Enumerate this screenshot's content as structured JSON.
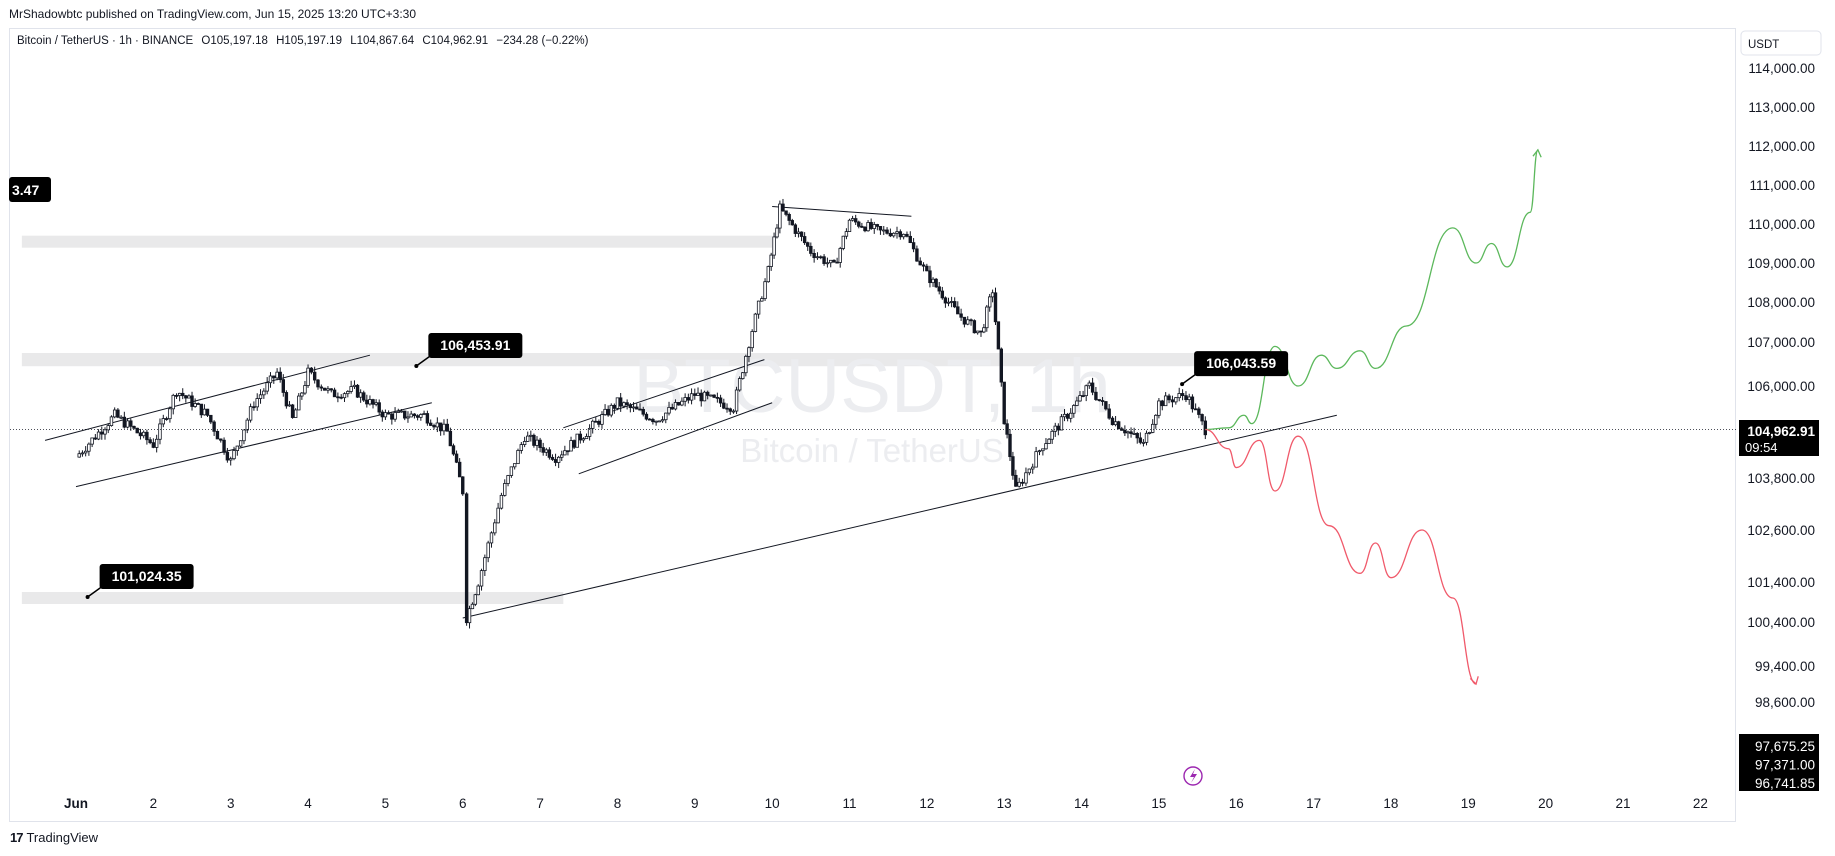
{
  "header": {
    "published": "MrShadowbtc published on TradingView.com, Jun 15, 2025 13:20 UTC+3:30"
  },
  "symbol_line": {
    "name": "Bitcoin / TetherUS · 1h · BINANCE",
    "open": "O105,197.18",
    "high": "H105,197.19",
    "low": "L104,867.64",
    "close": "C104,962.91",
    "change": "−234.28 (−0.22%)"
  },
  "watermark": {
    "ticker": "BTCUSDT, 1h",
    "name": "Bitcoin / TetherUS"
  },
  "footer": {
    "brand": "TradingView",
    "logo_mark": "17"
  },
  "colors": {
    "up_path": "#5cb85c",
    "down_path": "#f05a6b",
    "candles": "#131722",
    "zones": "#e9e9ea"
  },
  "chart_data": {
    "type": "candlestick",
    "currency": "USDT",
    "y_ticks": [
      "114,000.00",
      "113,000.00",
      "112,000.00",
      "111,000.00",
      "110,000.00",
      "109,000.00",
      "108,000.00",
      "107,000.00",
      "106,000.00",
      "103,800.00",
      "102,600.00",
      "101,400.00",
      "100,400.00",
      "99,400.00",
      "98,600.00"
    ],
    "y_tick_values": [
      114000,
      113000,
      112000,
      111000,
      110000,
      109000,
      108000,
      107000,
      106000,
      103800,
      102600,
      101400,
      100400,
      99400,
      98600
    ],
    "x_ticks": [
      "Jun",
      "2",
      "3",
      "4",
      "5",
      "6",
      "7",
      "8",
      "9",
      "10",
      "11",
      "12",
      "13",
      "14",
      "15",
      "16",
      "17",
      "18",
      "19",
      "20",
      "21",
      "22"
    ],
    "x_tick_days": [
      1,
      2,
      3,
      4,
      5,
      6,
      7,
      8,
      9,
      10,
      11,
      12,
      13,
      14,
      15,
      16,
      17,
      18,
      19,
      20,
      21,
      22
    ],
    "last_price": "104,962.91",
    "countdown": "09:54",
    "bottom_prices": [
      "97,675.25",
      "97,371.00",
      "96,741.85"
    ],
    "left_edge_label": "3.47",
    "callouts": [
      {
        "text": "106,453.91",
        "day": 5.4,
        "price": 106453.91
      },
      {
        "text": "106,043.59",
        "day": 15.3,
        "price": 106043.59
      },
      {
        "text": "101,024.35",
        "day": 1.15,
        "price": 101024.35
      }
    ],
    "closes": [
      {
        "day": 1.0,
        "price": 104300
      },
      {
        "day": 1.5,
        "price": 105300
      },
      {
        "day": 2.0,
        "price": 104600
      },
      {
        "day": 2.3,
        "price": 105900
      },
      {
        "day": 2.7,
        "price": 105300
      },
      {
        "day": 3.0,
        "price": 104200
      },
      {
        "day": 3.3,
        "price": 105600
      },
      {
        "day": 3.6,
        "price": 106300
      },
      {
        "day": 3.8,
        "price": 105200
      },
      {
        "day": 4.0,
        "price": 106300
      },
      {
        "day": 4.3,
        "price": 105800
      },
      {
        "day": 4.6,
        "price": 105900
      },
      {
        "day": 5.0,
        "price": 105300
      },
      {
        "day": 5.5,
        "price": 105300
      },
      {
        "day": 5.8,
        "price": 104900
      },
      {
        "day": 6.0,
        "price": 103500
      },
      {
        "day": 6.05,
        "price": 100500
      },
      {
        "day": 6.2,
        "price": 101400
      },
      {
        "day": 6.5,
        "price": 103400
      },
      {
        "day": 6.8,
        "price": 104800
      },
      {
        "day": 7.2,
        "price": 104300
      },
      {
        "day": 7.6,
        "price": 104900
      },
      {
        "day": 8.0,
        "price": 105600
      },
      {
        "day": 8.5,
        "price": 105200
      },
      {
        "day": 9.0,
        "price": 105800
      },
      {
        "day": 9.5,
        "price": 105500
      },
      {
        "day": 9.7,
        "price": 107000
      },
      {
        "day": 9.95,
        "price": 108800
      },
      {
        "day": 10.1,
        "price": 110400
      },
      {
        "day": 10.5,
        "price": 109300
      },
      {
        "day": 10.8,
        "price": 108900
      },
      {
        "day": 11.0,
        "price": 110100
      },
      {
        "day": 11.4,
        "price": 109800
      },
      {
        "day": 11.7,
        "price": 109800
      },
      {
        "day": 12.0,
        "price": 108700
      },
      {
        "day": 12.4,
        "price": 107700
      },
      {
        "day": 12.7,
        "price": 107200
      },
      {
        "day": 12.85,
        "price": 108300
      },
      {
        "day": 13.0,
        "price": 105200
      },
      {
        "day": 13.15,
        "price": 103500
      },
      {
        "day": 13.5,
        "price": 104600
      },
      {
        "day": 13.9,
        "price": 105500
      },
      {
        "day": 14.1,
        "price": 106000
      },
      {
        "day": 14.4,
        "price": 105200
      },
      {
        "day": 14.8,
        "price": 104600
      },
      {
        "day": 15.0,
        "price": 105600
      },
      {
        "day": 15.35,
        "price": 105800
      },
      {
        "day": 15.6,
        "price": 104960
      }
    ],
    "zones": [
      {
        "from_day": 0.3,
        "to_day": 10.0,
        "low": 109400,
        "high": 109700
      },
      {
        "from_day": 0.3,
        "to_day": 16.0,
        "low": 106450,
        "high": 106750
      },
      {
        "from_day": 0.3,
        "to_day": 7.3,
        "low": 100900,
        "high": 101150
      }
    ],
    "bull_path": [
      {
        "day": 15.6,
        "price": 104960
      },
      {
        "day": 15.9,
        "price": 105000
      },
      {
        "day": 16.1,
        "price": 105300
      },
      {
        "day": 16.2,
        "price": 105100
      },
      {
        "day": 16.5,
        "price": 106900
      },
      {
        "day": 16.8,
        "price": 106000
      },
      {
        "day": 17.1,
        "price": 106700
      },
      {
        "day": 17.3,
        "price": 106400
      },
      {
        "day": 17.6,
        "price": 106800
      },
      {
        "day": 17.8,
        "price": 106400
      },
      {
        "day": 18.2,
        "price": 107400
      },
      {
        "day": 18.8,
        "price": 109900
      },
      {
        "day": 19.1,
        "price": 109000
      },
      {
        "day": 19.3,
        "price": 109500
      },
      {
        "day": 19.5,
        "price": 108900
      },
      {
        "day": 19.8,
        "price": 110300
      },
      {
        "day": 19.9,
        "price": 111900
      }
    ],
    "bear_path": [
      {
        "day": 15.6,
        "price": 104960
      },
      {
        "day": 15.9,
        "price": 104500
      },
      {
        "day": 16.0,
        "price": 104050
      },
      {
        "day": 16.3,
        "price": 104700
      },
      {
        "day": 16.5,
        "price": 103500
      },
      {
        "day": 16.8,
        "price": 104800
      },
      {
        "day": 17.2,
        "price": 102700
      },
      {
        "day": 17.6,
        "price": 101600
      },
      {
        "day": 17.8,
        "price": 102300
      },
      {
        "day": 18.0,
        "price": 101500
      },
      {
        "day": 18.4,
        "price": 102600
      },
      {
        "day": 18.8,
        "price": 101000
      },
      {
        "day": 19.1,
        "price": 99000
      }
    ],
    "trendlines": [
      {
        "d1": 6.0,
        "p1": 100500,
        "d2": 17.3,
        "p2": 105300
      },
      {
        "d1": 1.0,
        "p1": 103600,
        "d2": 5.6,
        "p2": 105600
      },
      {
        "d1": 0.6,
        "p1": 104700,
        "d2": 4.8,
        "p2": 106700
      },
      {
        "d1": 7.5,
        "p1": 103900,
        "d2": 10.0,
        "p2": 105600
      },
      {
        "d1": 7.3,
        "p1": 105000,
        "d2": 9.9,
        "p2": 106600
      },
      {
        "d1": 10.0,
        "p1": 110450,
        "d2": 11.8,
        "p2": 110200
      }
    ],
    "grid": false
  }
}
